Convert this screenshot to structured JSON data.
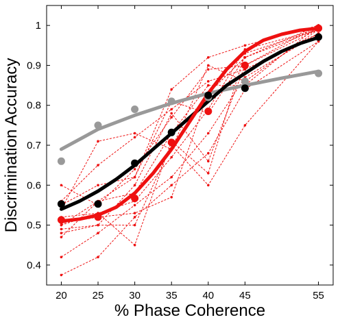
{
  "chart_data": {
    "type": "line",
    "title": "",
    "xlabel": "% Phase Coherence",
    "ylabel": "Discrimination Accuracy",
    "xlim": [
      18,
      57
    ],
    "ylim": [
      0.35,
      1.05
    ],
    "x_ticks": [
      20,
      25,
      30,
      35,
      40,
      45,
      55
    ],
    "y_ticks": [
      0.4,
      0.5,
      0.6,
      0.7,
      0.8,
      0.9,
      1
    ],
    "grid": false,
    "legend": "none",
    "colors": {
      "gray": "#999999",
      "black": "#000000",
      "red": "#ee1111"
    },
    "series": [
      {
        "style": "fit",
        "color": "gray",
        "x": [
          20,
          25,
          30,
          35,
          40,
          45,
          50,
          55
        ],
        "y": [
          0.69,
          0.74,
          0.775,
          0.805,
          0.83,
          0.85,
          0.868,
          0.885
        ]
      },
      {
        "style": "fit",
        "color": "black",
        "x": [
          20,
          22.5,
          25,
          27.5,
          30,
          32.5,
          35,
          37.5,
          40,
          42.5,
          45,
          47.5,
          50,
          52.5,
          55
        ],
        "y": [
          0.54,
          0.56,
          0.585,
          0.615,
          0.65,
          0.69,
          0.73,
          0.77,
          0.81,
          0.85,
          0.88,
          0.91,
          0.935,
          0.955,
          0.97
        ]
      },
      {
        "style": "fit",
        "color": "red",
        "x": [
          20,
          22.5,
          25,
          27.5,
          30,
          32.5,
          35,
          37.5,
          40,
          42.5,
          45,
          47.5,
          50,
          52.5,
          55
        ],
        "y": [
          0.51,
          0.515,
          0.525,
          0.545,
          0.58,
          0.63,
          0.69,
          0.76,
          0.83,
          0.89,
          0.935,
          0.963,
          0.978,
          0.988,
          0.993
        ]
      },
      {
        "style": "points",
        "color": "gray",
        "x": [
          20,
          25,
          30,
          35,
          40,
          45,
          55
        ],
        "y": [
          0.66,
          0.75,
          0.79,
          0.81,
          0.82,
          0.86,
          0.88
        ]
      },
      {
        "style": "points",
        "color": "black",
        "x": [
          20,
          25,
          30,
          35,
          40,
          45,
          55
        ],
        "y": [
          0.553,
          0.553,
          0.655,
          0.732,
          0.825,
          0.843,
          0.971
        ]
      },
      {
        "style": "points",
        "color": "red",
        "x": [
          20,
          25,
          30,
          35,
          40,
          45,
          55
        ],
        "y": [
          0.513,
          0.52,
          0.567,
          0.707,
          0.785,
          0.9,
          0.993
        ]
      },
      {
        "style": "individual",
        "color": "red",
        "x": [
          20,
          25,
          30,
          35,
          40,
          45,
          55
        ],
        "y": [
          0.375,
          0.42,
          0.52,
          0.6,
          0.68,
          0.84,
          0.96
        ]
      },
      {
        "style": "individual",
        "color": "red",
        "x": [
          20,
          25,
          30,
          35,
          40,
          45,
          55
        ],
        "y": [
          0.42,
          0.48,
          0.55,
          0.62,
          0.73,
          0.87,
          0.98
        ]
      },
      {
        "style": "individual",
        "color": "red",
        "x": [
          20,
          25,
          30,
          35,
          40,
          45,
          55
        ],
        "y": [
          0.47,
          0.56,
          0.62,
          0.84,
          0.92,
          0.95,
          1.0
        ]
      },
      {
        "style": "individual",
        "color": "red",
        "x": [
          20,
          25,
          30,
          35,
          40,
          45,
          55
        ],
        "y": [
          0.49,
          0.5,
          0.6,
          0.78,
          0.66,
          0.9,
          0.99
        ]
      },
      {
        "style": "individual",
        "color": "red",
        "x": [
          20,
          25,
          30,
          35,
          40,
          45,
          55
        ],
        "y": [
          0.5,
          0.56,
          0.58,
          0.73,
          0.85,
          0.85,
          1.0
        ]
      },
      {
        "style": "individual",
        "color": "red",
        "x": [
          20,
          25,
          30,
          35,
          40,
          45,
          55
        ],
        "y": [
          0.505,
          0.52,
          0.53,
          0.57,
          0.83,
          0.92,
          0.99
        ]
      },
      {
        "style": "individual",
        "color": "red",
        "x": [
          20,
          25,
          30,
          35,
          40,
          45,
          55
        ],
        "y": [
          0.52,
          0.53,
          0.56,
          0.67,
          0.79,
          0.94,
          0.99
        ]
      },
      {
        "style": "individual",
        "color": "red",
        "x": [
          20,
          25,
          30,
          35,
          40,
          45,
          55
        ],
        "y": [
          0.54,
          0.71,
          0.73,
          0.69,
          0.9,
          0.86,
          0.99
        ]
      },
      {
        "style": "individual",
        "color": "red",
        "x": [
          20,
          25,
          30,
          35,
          40,
          45,
          55
        ],
        "y": [
          0.55,
          0.6,
          0.62,
          0.81,
          0.78,
          0.92,
          1.0
        ]
      },
      {
        "style": "individual",
        "color": "red",
        "x": [
          20,
          25,
          30,
          35,
          40,
          45,
          55
        ],
        "y": [
          0.56,
          0.65,
          0.72,
          0.79,
          0.86,
          0.89,
          0.98
        ]
      },
      {
        "style": "individual",
        "color": "red",
        "x": [
          20,
          25,
          30,
          35,
          40,
          45,
          55
        ],
        "y": [
          0.6,
          0.55,
          0.64,
          0.77,
          0.89,
          0.9,
          1.0
        ]
      },
      {
        "style": "individual",
        "color": "red",
        "x": [
          20,
          25,
          30,
          35,
          40,
          45,
          55
        ],
        "y": [
          0.5,
          0.53,
          0.45,
          0.71,
          0.63,
          0.93,
          0.99
        ]
      },
      {
        "style": "individual",
        "color": "red",
        "x": [
          20,
          25,
          30,
          35,
          40,
          45,
          55
        ],
        "y": [
          0.48,
          0.5,
          0.5,
          0.7,
          0.6,
          0.75,
          0.96
        ]
      }
    ]
  }
}
